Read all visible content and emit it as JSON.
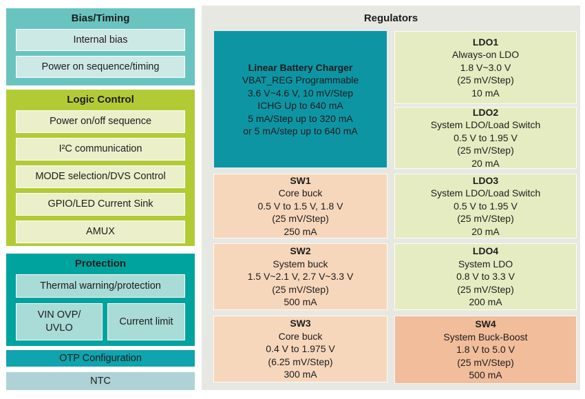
{
  "colors": {
    "text": "#1c1c1c",
    "bias_outer": "#69c4c0",
    "bias_inner": "#cde9e6",
    "logic_outer": "#b2cb35",
    "logic_inner": "#ebf0ca",
    "protection_outer": "#00a39e",
    "protection_inner": "#a9dbd7",
    "otp": "#0fa4ae",
    "ntc": "#aed2d5",
    "panel_bg": "#e8e8e3",
    "charger": "#0e95a4",
    "ldo": "#e6ecc1",
    "sw": "#f7d7bc",
    "sw4": "#f1bd9b"
  },
  "left_column": {
    "bias_timing": {
      "title": "Bias/Timing",
      "items": [
        "Internal bias",
        "Power on sequence/timing"
      ]
    },
    "logic_control": {
      "title": "Logic Control",
      "items": [
        "Power on/off sequence",
        "I²C communication",
        "MODE selection/DVS Control",
        "GPIO/LED Current Sink",
        "AMUX"
      ]
    },
    "protection": {
      "title": "Protection",
      "thermal": "Thermal warning/protection",
      "vin_ovp_uvlo_lines": [
        "VIN OVP/",
        "UVLO"
      ],
      "current_limit": "Current limit"
    },
    "otp_bar": "OTP Configuration",
    "ntc_bar": "NTC"
  },
  "regulators": {
    "title": "Regulators",
    "charger": {
      "title": "Linear Battery Charger",
      "lines": [
        "VBAT_REG Programmable",
        "3.6 V~4.6 V, 10 mV/Step",
        "ICHG Up to 640 mA",
        "5 mA/Step up to 320 mA",
        "or 5 mA/step up to 640 mA"
      ]
    },
    "ldo1": {
      "title": "LDO1",
      "lines": [
        "Always-on LDO",
        "1.8 V~3.0 V",
        "(25 mV/Step)",
        "10 mA"
      ]
    },
    "ldo2": {
      "title": "LDO2",
      "lines": [
        "System LDO/Load Switch",
        "0.5 V to 1.95 V",
        "(25 mV/Step)",
        "20 mA"
      ]
    },
    "sw1": {
      "title": "SW1",
      "lines": [
        "Core buck",
        "0.5 V to 1.5 V, 1.8 V",
        "(25 mV/Step)",
        "250 mA"
      ]
    },
    "ldo3": {
      "title": "LDO3",
      "lines": [
        "System LDO/Load Switch",
        "0.5 V to 1.95 V",
        "(25 mV/Step)",
        "20 mA"
      ]
    },
    "sw2": {
      "title": "SW2",
      "lines": [
        "System buck",
        "1.5 V~2.1 V, 2.7 V~3.3 V",
        "(25 mV/Step)",
        "500 mA"
      ]
    },
    "ldo4": {
      "title": "LDO4",
      "lines": [
        "System LDO",
        "0.8 V to 3.3 V",
        "(25 mV/Step)",
        "200 mA"
      ]
    },
    "sw3": {
      "title": "SW3",
      "lines": [
        "Core buck",
        "0.4 V to 1.975 V",
        "(6.25 mV/Step)",
        "300 mA"
      ]
    },
    "sw4": {
      "title": "SW4",
      "lines": [
        "System Buck-Boost",
        "1.8 V to 5.0 V",
        "(25 mV/Step)",
        "500 mA"
      ]
    }
  }
}
